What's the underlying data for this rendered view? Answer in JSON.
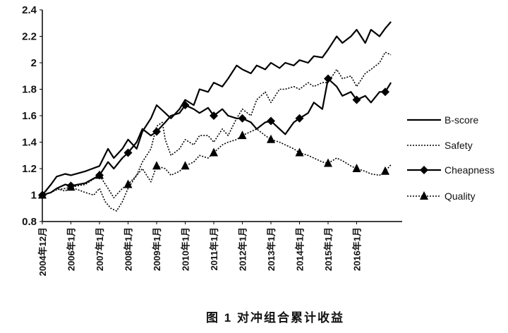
{
  "caption": "图 1 对冲组合累计收益",
  "chart_data": {
    "type": "line",
    "xlabel": "",
    "ylabel": "",
    "ylim": [
      0.8,
      2.4
    ],
    "yticks": [
      "0.8",
      "1",
      "1.2",
      "1.4",
      "1.6",
      "1.8",
      "2",
      "2.2",
      "2.4"
    ],
    "xticks": [
      "2004年12月",
      "2006年1月",
      "2007年1月",
      "2008年1月",
      "2009年1月",
      "2010年1月",
      "2011年1月",
      "2012年1月",
      "2013年1月",
      "2014年1月",
      "2015年1月",
      "2016年1月"
    ],
    "xlim": [
      0,
      12
    ],
    "legend": "right",
    "grid": false,
    "series": [
      {
        "name": "B-score",
        "style": "solid",
        "marker": "none",
        "x": [
          0,
          0.3,
          0.5,
          0.8,
          1.0,
          1.5,
          2.0,
          2.3,
          2.5,
          2.8,
          3.0,
          3.3,
          3.5,
          3.8,
          4.0,
          4.3,
          4.5,
          4.8,
          5.0,
          5.3,
          5.5,
          5.8,
          6.0,
          6.3,
          6.5,
          6.8,
          7.0,
          7.3,
          7.5,
          7.8,
          8.0,
          8.3,
          8.5,
          8.8,
          9.0,
          9.3,
          9.5,
          9.8,
          10.0,
          10.3,
          10.5,
          10.8,
          11.0,
          11.3,
          11.5,
          11.8,
          12.0,
          12.2
        ],
        "values": [
          1.0,
          1.08,
          1.14,
          1.16,
          1.15,
          1.18,
          1.22,
          1.35,
          1.28,
          1.35,
          1.42,
          1.35,
          1.48,
          1.58,
          1.68,
          1.62,
          1.58,
          1.65,
          1.72,
          1.68,
          1.8,
          1.78,
          1.85,
          1.82,
          1.88,
          1.98,
          1.95,
          1.92,
          1.98,
          1.95,
          2.0,
          1.96,
          2.0,
          1.98,
          2.02,
          2.0,
          2.05,
          2.04,
          2.1,
          2.2,
          2.15,
          2.2,
          2.25,
          2.15,
          2.25,
          2.2,
          2.26,
          2.31
        ]
      },
      {
        "name": "Safety",
        "style": "dotted",
        "marker": "none",
        "x": [
          0,
          0.3,
          0.5,
          0.8,
          1.0,
          1.5,
          1.8,
          2.0,
          2.2,
          2.4,
          2.6,
          2.8,
          3.0,
          3.3,
          3.5,
          3.8,
          4.0,
          4.2,
          4.3,
          4.5,
          4.8,
          5.0,
          5.3,
          5.5,
          5.8,
          6.0,
          6.3,
          6.5,
          6.8,
          7.0,
          7.3,
          7.5,
          7.8,
          8.0,
          8.3,
          8.5,
          8.8,
          9.0,
          9.3,
          9.5,
          9.8,
          10.0,
          10.3,
          10.5,
          10.8,
          11.0,
          11.3,
          11.5,
          11.8,
          12.0,
          12.2
        ],
        "values": [
          1.0,
          1.02,
          1.05,
          1.03,
          1.06,
          1.02,
          1.0,
          1.05,
          0.95,
          0.9,
          0.88,
          0.95,
          1.05,
          1.15,
          1.25,
          1.35,
          1.52,
          1.55,
          1.42,
          1.3,
          1.35,
          1.42,
          1.38,
          1.45,
          1.45,
          1.4,
          1.5,
          1.45,
          1.58,
          1.65,
          1.6,
          1.72,
          1.78,
          1.7,
          1.8,
          1.8,
          1.82,
          1.8,
          1.85,
          1.82,
          1.85,
          1.85,
          1.95,
          1.88,
          1.9,
          1.82,
          1.92,
          1.95,
          2.0,
          2.08,
          2.06
        ]
      },
      {
        "name": "Cheapness",
        "style": "solid",
        "marker": "diamond",
        "markers_at": [
          0,
          1,
          2,
          3,
          4,
          5,
          6,
          7,
          8,
          9,
          10,
          11,
          12
        ],
        "x": [
          0,
          0.3,
          0.5,
          0.8,
          1.0,
          1.5,
          2.0,
          2.3,
          2.5,
          2.8,
          3.0,
          3.3,
          3.5,
          3.8,
          4.0,
          4.3,
          4.5,
          4.8,
          5.0,
          5.3,
          5.5,
          5.8,
          6.0,
          6.3,
          6.5,
          6.8,
          7.0,
          7.3,
          7.5,
          7.8,
          8.0,
          8.3,
          8.5,
          8.8,
          9.0,
          9.3,
          9.5,
          9.8,
          10.0,
          10.3,
          10.5,
          10.8,
          11.0,
          11.3,
          11.5,
          11.8,
          12.0,
          12.2
        ],
        "values": [
          1.0,
          1.02,
          1.05,
          1.08,
          1.07,
          1.09,
          1.15,
          1.25,
          1.2,
          1.28,
          1.32,
          1.4,
          1.5,
          1.45,
          1.48,
          1.55,
          1.6,
          1.62,
          1.68,
          1.65,
          1.62,
          1.66,
          1.6,
          1.65,
          1.6,
          1.58,
          1.58,
          1.55,
          1.5,
          1.55,
          1.56,
          1.5,
          1.46,
          1.55,
          1.58,
          1.62,
          1.7,
          1.65,
          1.88,
          1.82,
          1.75,
          1.78,
          1.72,
          1.75,
          1.7,
          1.78,
          1.78,
          1.85
        ]
      },
      {
        "name": "Quality",
        "style": "dotted",
        "marker": "triangle",
        "markers_at": [
          0,
          1,
          2,
          3,
          4,
          5,
          6,
          7,
          8,
          9,
          10,
          11,
          12
        ],
        "x": [
          0,
          0.3,
          0.5,
          0.8,
          1.0,
          1.5,
          2.0,
          2.3,
          2.5,
          2.8,
          3.0,
          3.3,
          3.5,
          3.8,
          4.0,
          4.3,
          4.5,
          4.8,
          5.0,
          5.3,
          5.5,
          5.8,
          6.0,
          6.3,
          6.5,
          6.8,
          7.0,
          7.3,
          7.5,
          7.8,
          8.0,
          8.3,
          8.5,
          8.8,
          9.0,
          9.3,
          9.5,
          9.8,
          10.0,
          10.3,
          10.5,
          10.8,
          11.0,
          11.3,
          11.5,
          11.8,
          12.0,
          12.2
        ],
        "values": [
          1.0,
          1.02,
          1.04,
          1.05,
          1.06,
          1.08,
          1.15,
          1.05,
          0.98,
          1.05,
          1.08,
          1.15,
          1.2,
          1.1,
          1.22,
          1.2,
          1.15,
          1.18,
          1.22,
          1.25,
          1.3,
          1.28,
          1.32,
          1.38,
          1.4,
          1.42,
          1.45,
          1.48,
          1.5,
          1.45,
          1.42,
          1.4,
          1.38,
          1.35,
          1.32,
          1.3,
          1.28,
          1.25,
          1.24,
          1.28,
          1.26,
          1.22,
          1.2,
          1.18,
          1.16,
          1.15,
          1.18,
          1.23
        ]
      }
    ]
  }
}
